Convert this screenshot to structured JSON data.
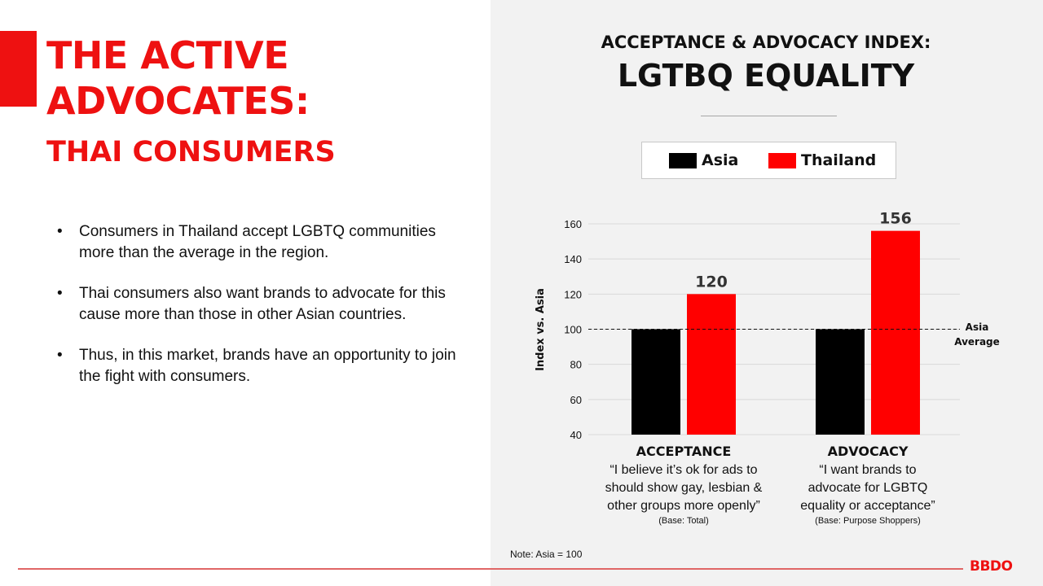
{
  "slide": {
    "title_lines": [
      "THE ACTIVE",
      "ADVOCATES:"
    ],
    "subtitle": "THAI CONSUMERS",
    "bullets": [
      "Consumers in Thailand accept LGBTQ communities more than the average in the region.",
      "Thai consumers also want brands to advocate for this cause more than those in other Asian countries.",
      "Thus, in this market, brands have an opportunity to join the fight with consumers."
    ],
    "bullet_symbol": "•",
    "note": "Note: Asia = 100",
    "brand": "BBDO"
  },
  "colors": {
    "accent": "#ee1111",
    "asia": "#000000",
    "thailand": "#ff0000",
    "panel": "#f2f2f2"
  },
  "chart_data": {
    "type": "bar",
    "title": "ACCEPTANCE & ADVOCACY INDEX:",
    "subtitle": "LGTBQ EQUALITY",
    "ylabel": "Index vs. Asia",
    "xlabel": "",
    "ylim": [
      40,
      160
    ],
    "yticks": [
      40,
      60,
      80,
      100,
      120,
      140,
      160
    ],
    "grid": true,
    "legend_position": "top-center",
    "reference_line": {
      "value": 100,
      "label_lines": [
        "Asia",
        "Average"
      ],
      "style": "dashed"
    },
    "categories": [
      {
        "name": "ACCEPTANCE",
        "description_lines": [
          "“I believe it’s ok for ads to",
          "should show gay, lesbian &",
          "other groups more openly”"
        ],
        "base": "(Base: Total)"
      },
      {
        "name": "ADVOCACY",
        "description_lines": [
          "“I want brands to",
          "advocate for LGBTQ",
          "equality or acceptance”"
        ],
        "base": "(Base: Purpose Shoppers)"
      }
    ],
    "series": [
      {
        "name": "Asia",
        "values": [
          100,
          100
        ],
        "data_labels": [
          "",
          ""
        ]
      },
      {
        "name": "Thailand",
        "values": [
          120,
          156
        ],
        "data_labels": [
          "120",
          "156"
        ]
      }
    ]
  }
}
